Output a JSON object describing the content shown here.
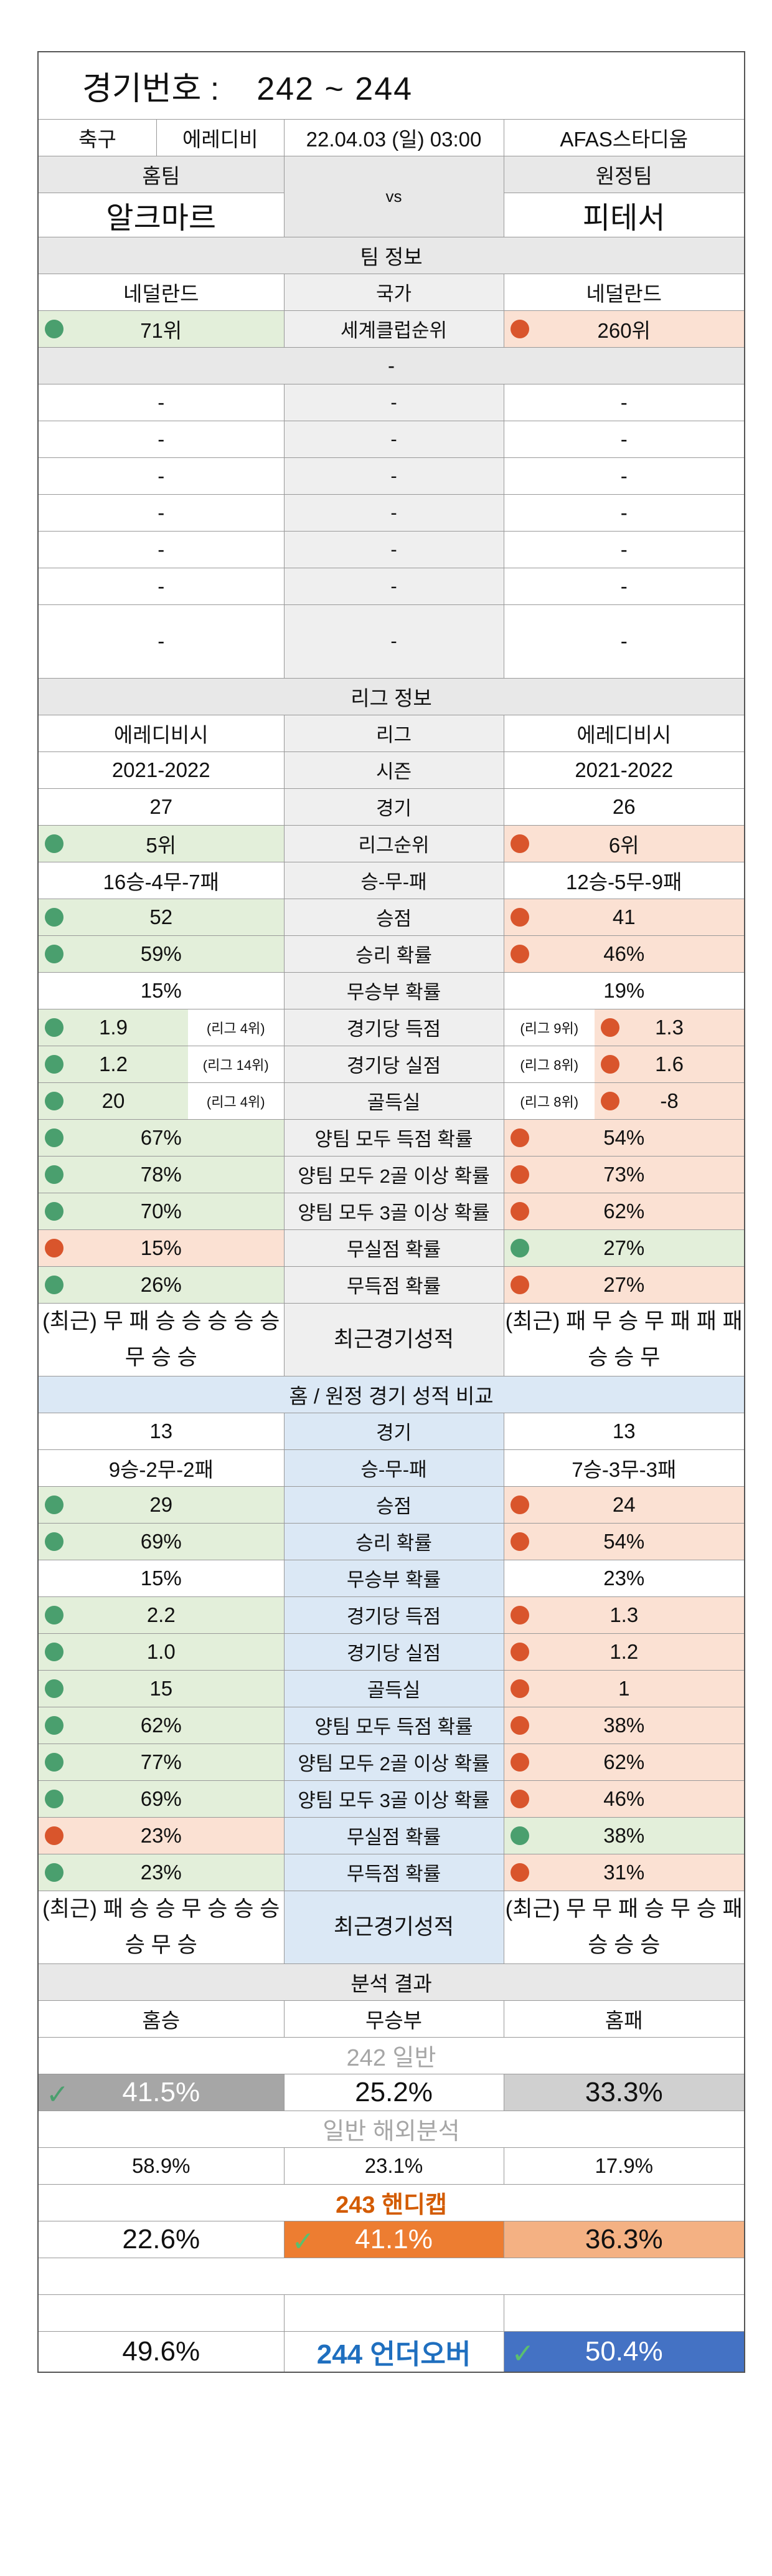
{
  "header": {
    "label": "경기번호 :",
    "range": "242   ~   244"
  },
  "match": {
    "sport": "축구",
    "league": "에레디비",
    "datetime": "22.04.03 (일) 03:00",
    "venue": "AFAS스타디움"
  },
  "teams": {
    "home_label": "홈팀",
    "away_label": "원정팀",
    "home": "알크마르",
    "vs": "vs",
    "away": "피테서"
  },
  "team_info": {
    "title": "팀 정보",
    "country": {
      "home": "네덜란드",
      "label": "국가",
      "away": "네덜란드"
    },
    "rank": {
      "home": "71위",
      "label": "세계클럽순위",
      "away": "260위"
    },
    "dash": "-",
    "blank_rows": [
      "-",
      "-",
      "-",
      "-",
      "-",
      "-",
      "-"
    ]
  },
  "league_info": {
    "title": "리그 정보",
    "rows": [
      {
        "home": "에레디비시",
        "label": "리그",
        "away": "에레디비시"
      },
      {
        "home": "2021-2022",
        "label": "시즌",
        "away": "2021-2022"
      },
      {
        "home": "27",
        "label": "경기",
        "away": "26"
      },
      {
        "home": "5위",
        "label": "리그순위",
        "away": "6위"
      },
      {
        "home": "16승-4무-7패",
        "label": "승-무-패",
        "away": "12승-5무-9패"
      },
      {
        "home": "52",
        "label": "승점",
        "away": "41"
      },
      {
        "home": "59%",
        "label": "승리 확률",
        "away": "46%"
      },
      {
        "home": "15%",
        "label": "무승부 확률",
        "away": "19%"
      },
      {
        "home": "1.9",
        "home_rank": "(리그 4위)",
        "label": "경기당 득점",
        "away": "1.3",
        "away_rank": "(리그 9위)"
      },
      {
        "home": "1.2",
        "home_rank": "(리그 14위)",
        "label": "경기당 실점",
        "away": "1.6",
        "away_rank": "(리그 8위)"
      },
      {
        "home": "20",
        "home_rank": "(리그 4위)",
        "label": "골득실",
        "away": "-8",
        "away_rank": "(리그 8위)"
      },
      {
        "home": "67%",
        "label": "양팀 모두 득점 확률",
        "away": "54%"
      },
      {
        "home": "78%",
        "label": "양팀 모두 2골 이상 확률",
        "away": "73%"
      },
      {
        "home": "70%",
        "label": "양팀 모두 3골 이상 확률",
        "away": "62%"
      },
      {
        "home": "15%",
        "label": "무실점 확률",
        "away": "27%"
      },
      {
        "home": "26%",
        "label": "무득점 확률",
        "away": "27%"
      }
    ],
    "recent": {
      "home": "(최근) 무 패 승 승 승 승 승 무 승 승",
      "label": "최근경기성적",
      "away": "(최근) 패 무 승 무 패 패 패 승 승 무"
    }
  },
  "homeaway": {
    "title": "홈 / 원정 경기 성적 비교",
    "rows": [
      {
        "home": "13",
        "label": "경기",
        "away": "13"
      },
      {
        "home": "9승-2무-2패",
        "label": "승-무-패",
        "away": "7승-3무-3패"
      },
      {
        "home": "29",
        "label": "승점",
        "away": "24"
      },
      {
        "home": "69%",
        "label": "승리 확률",
        "away": "54%"
      },
      {
        "home": "15%",
        "label": "무승부 확률",
        "away": "23%"
      },
      {
        "home": "2.2",
        "label": "경기당 득점",
        "away": "1.3"
      },
      {
        "home": "1.0",
        "label": "경기당 실점",
        "away": "1.2"
      },
      {
        "home": "15",
        "label": "골득실",
        "away": "1"
      },
      {
        "home": "62%",
        "label": "양팀 모두 득점 확률",
        "away": "38%"
      },
      {
        "home": "77%",
        "label": "양팀 모두 2골 이상 확률",
        "away": "62%"
      },
      {
        "home": "69%",
        "label": "양팀 모두 3골 이상 확률",
        "away": "46%"
      },
      {
        "home": "23%",
        "label": "무실점 확률",
        "away": "38%"
      },
      {
        "home": "23%",
        "label": "무득점 확률",
        "away": "31%"
      }
    ],
    "recent": {
      "home": "(최근) 패 승 승 무 승 승 승 승 무 승",
      "label": "최근경기성적",
      "away": "(최근) 무 무 패 승 무 승 패 승 승 승"
    }
  },
  "analysis": {
    "title": "분석 결과",
    "cols": {
      "win": "홈승",
      "draw": "무승부",
      "loss": "홈패"
    },
    "g242": {
      "title": "242 일반",
      "win": "41.5%",
      "draw": "25.2%",
      "loss": "33.3%"
    },
    "overseas": {
      "title": "일반 해외분석",
      "win": "58.9%",
      "draw": "23.1%",
      "loss": "17.9%"
    },
    "g243": {
      "title": "243 핸디캡",
      "win": "22.6%",
      "draw": "41.1%",
      "loss": "36.3%"
    },
    "g244": {
      "title": "244 언더오버",
      "under": "49.6%",
      "over": "50.4%"
    }
  },
  "colors": {
    "green_dot": "#4a9f6e",
    "red_dot": "#d9552c",
    "green_bg": "#e3efda",
    "orange_bg": "#fbe1d3",
    "highlight_orange": "#ed7d31",
    "highlight_blue": "#4472c4"
  }
}
